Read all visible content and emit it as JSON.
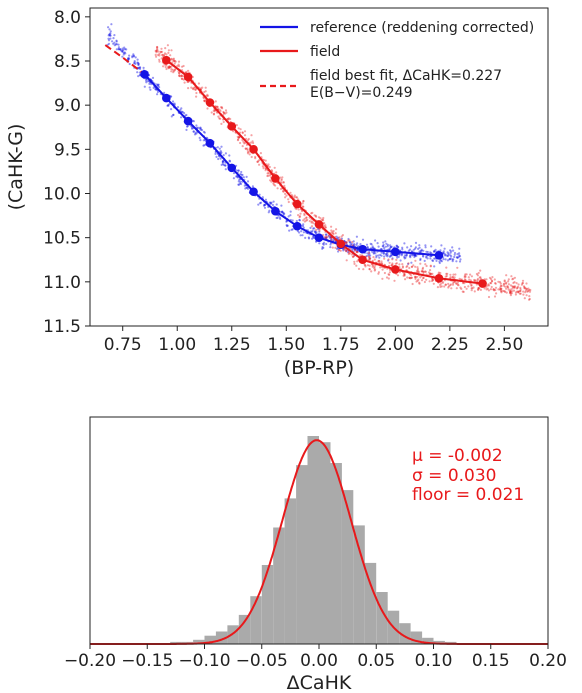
{
  "colors": {
    "reference": "#1414e6",
    "field": "#e8191b",
    "hist": "#aaaaaa",
    "fit": "#e8191b"
  },
  "chart_data": [
    {
      "type": "scatter",
      "xlabel": "(BP-RP)",
      "ylabel": "(CaHK-G)",
      "xlim": [
        0.6,
        2.7
      ],
      "ylim": [
        11.5,
        7.9
      ],
      "y_inverted": true,
      "xticks": [
        "0.75",
        "1.00",
        "1.25",
        "1.50",
        "1.75",
        "2.00",
        "2.25",
        "2.50"
      ],
      "yticks": [
        "8.0",
        "8.5",
        "9.0",
        "9.5",
        "10.0",
        "10.5",
        "11.0",
        "11.5"
      ],
      "legend_position": "top-right",
      "legend": {
        "reference": "reference (reddening corrected)",
        "field": "field",
        "fit_line1": "field best fit, ΔCaHK=0.227",
        "fit_line2": "E(B−V)=0.249"
      },
      "series": [
        {
          "name": "reference (reddening corrected)",
          "style": "line+markers",
          "x": [
            0.85,
            0.95,
            1.05,
            1.15,
            1.25,
            1.35,
            1.45,
            1.55,
            1.65,
            1.75,
            1.85,
            2.0,
            2.2
          ],
          "y": [
            8.65,
            8.92,
            9.18,
            9.43,
            9.71,
            9.98,
            10.2,
            10.37,
            10.5,
            10.58,
            10.63,
            10.66,
            10.7
          ]
        },
        {
          "name": "field",
          "style": "line+markers",
          "x": [
            0.95,
            1.05,
            1.15,
            1.25,
            1.35,
            1.45,
            1.55,
            1.65,
            1.75,
            1.85,
            2.0,
            2.2,
            2.4
          ],
          "y": [
            8.49,
            8.68,
            8.97,
            9.24,
            9.5,
            9.83,
            10.12,
            10.35,
            10.57,
            10.75,
            10.86,
            10.96,
            11.02
          ]
        },
        {
          "name": "field best fit, ΔCaHK=0.227",
          "style": "dashed",
          "x": [
            0.67,
            0.75,
            0.85
          ],
          "y": [
            8.32,
            8.46,
            8.65
          ]
        }
      ]
    },
    {
      "type": "bar",
      "subtype": "histogram",
      "xlabel": "ΔCaHK",
      "xlim": [
        -0.2,
        0.2
      ],
      "xticks": [
        "−0.20",
        "−0.15",
        "−0.10",
        "−0.05",
        "0.00",
        "0.05",
        "0.10",
        "0.15",
        "0.20"
      ],
      "bin_width": 0.01,
      "bin_centers": [
        -0.125,
        -0.115,
        -0.105,
        -0.095,
        -0.085,
        -0.075,
        -0.065,
        -0.055,
        -0.045,
        -0.035,
        -0.025,
        -0.015,
        -0.005,
        0.005,
        0.015,
        0.025,
        0.035,
        0.045,
        0.055,
        0.065,
        0.075,
        0.085,
        0.095,
        0.105,
        0.115
      ],
      "heights": [
        0.01,
        0.01,
        0.02,
        0.04,
        0.06,
        0.09,
        0.14,
        0.23,
        0.38,
        0.56,
        0.7,
        0.86,
        1.0,
        0.97,
        0.87,
        0.74,
        0.57,
        0.39,
        0.25,
        0.16,
        0.1,
        0.06,
        0.03,
        0.015,
        0.01
      ],
      "fit": {
        "type": "gaussian",
        "mu": -0.002,
        "sigma": 0.03
      },
      "stats": {
        "mu": "μ = -0.002",
        "sigma": "σ = 0.030",
        "floor": "floor = 0.021"
      }
    }
  ]
}
